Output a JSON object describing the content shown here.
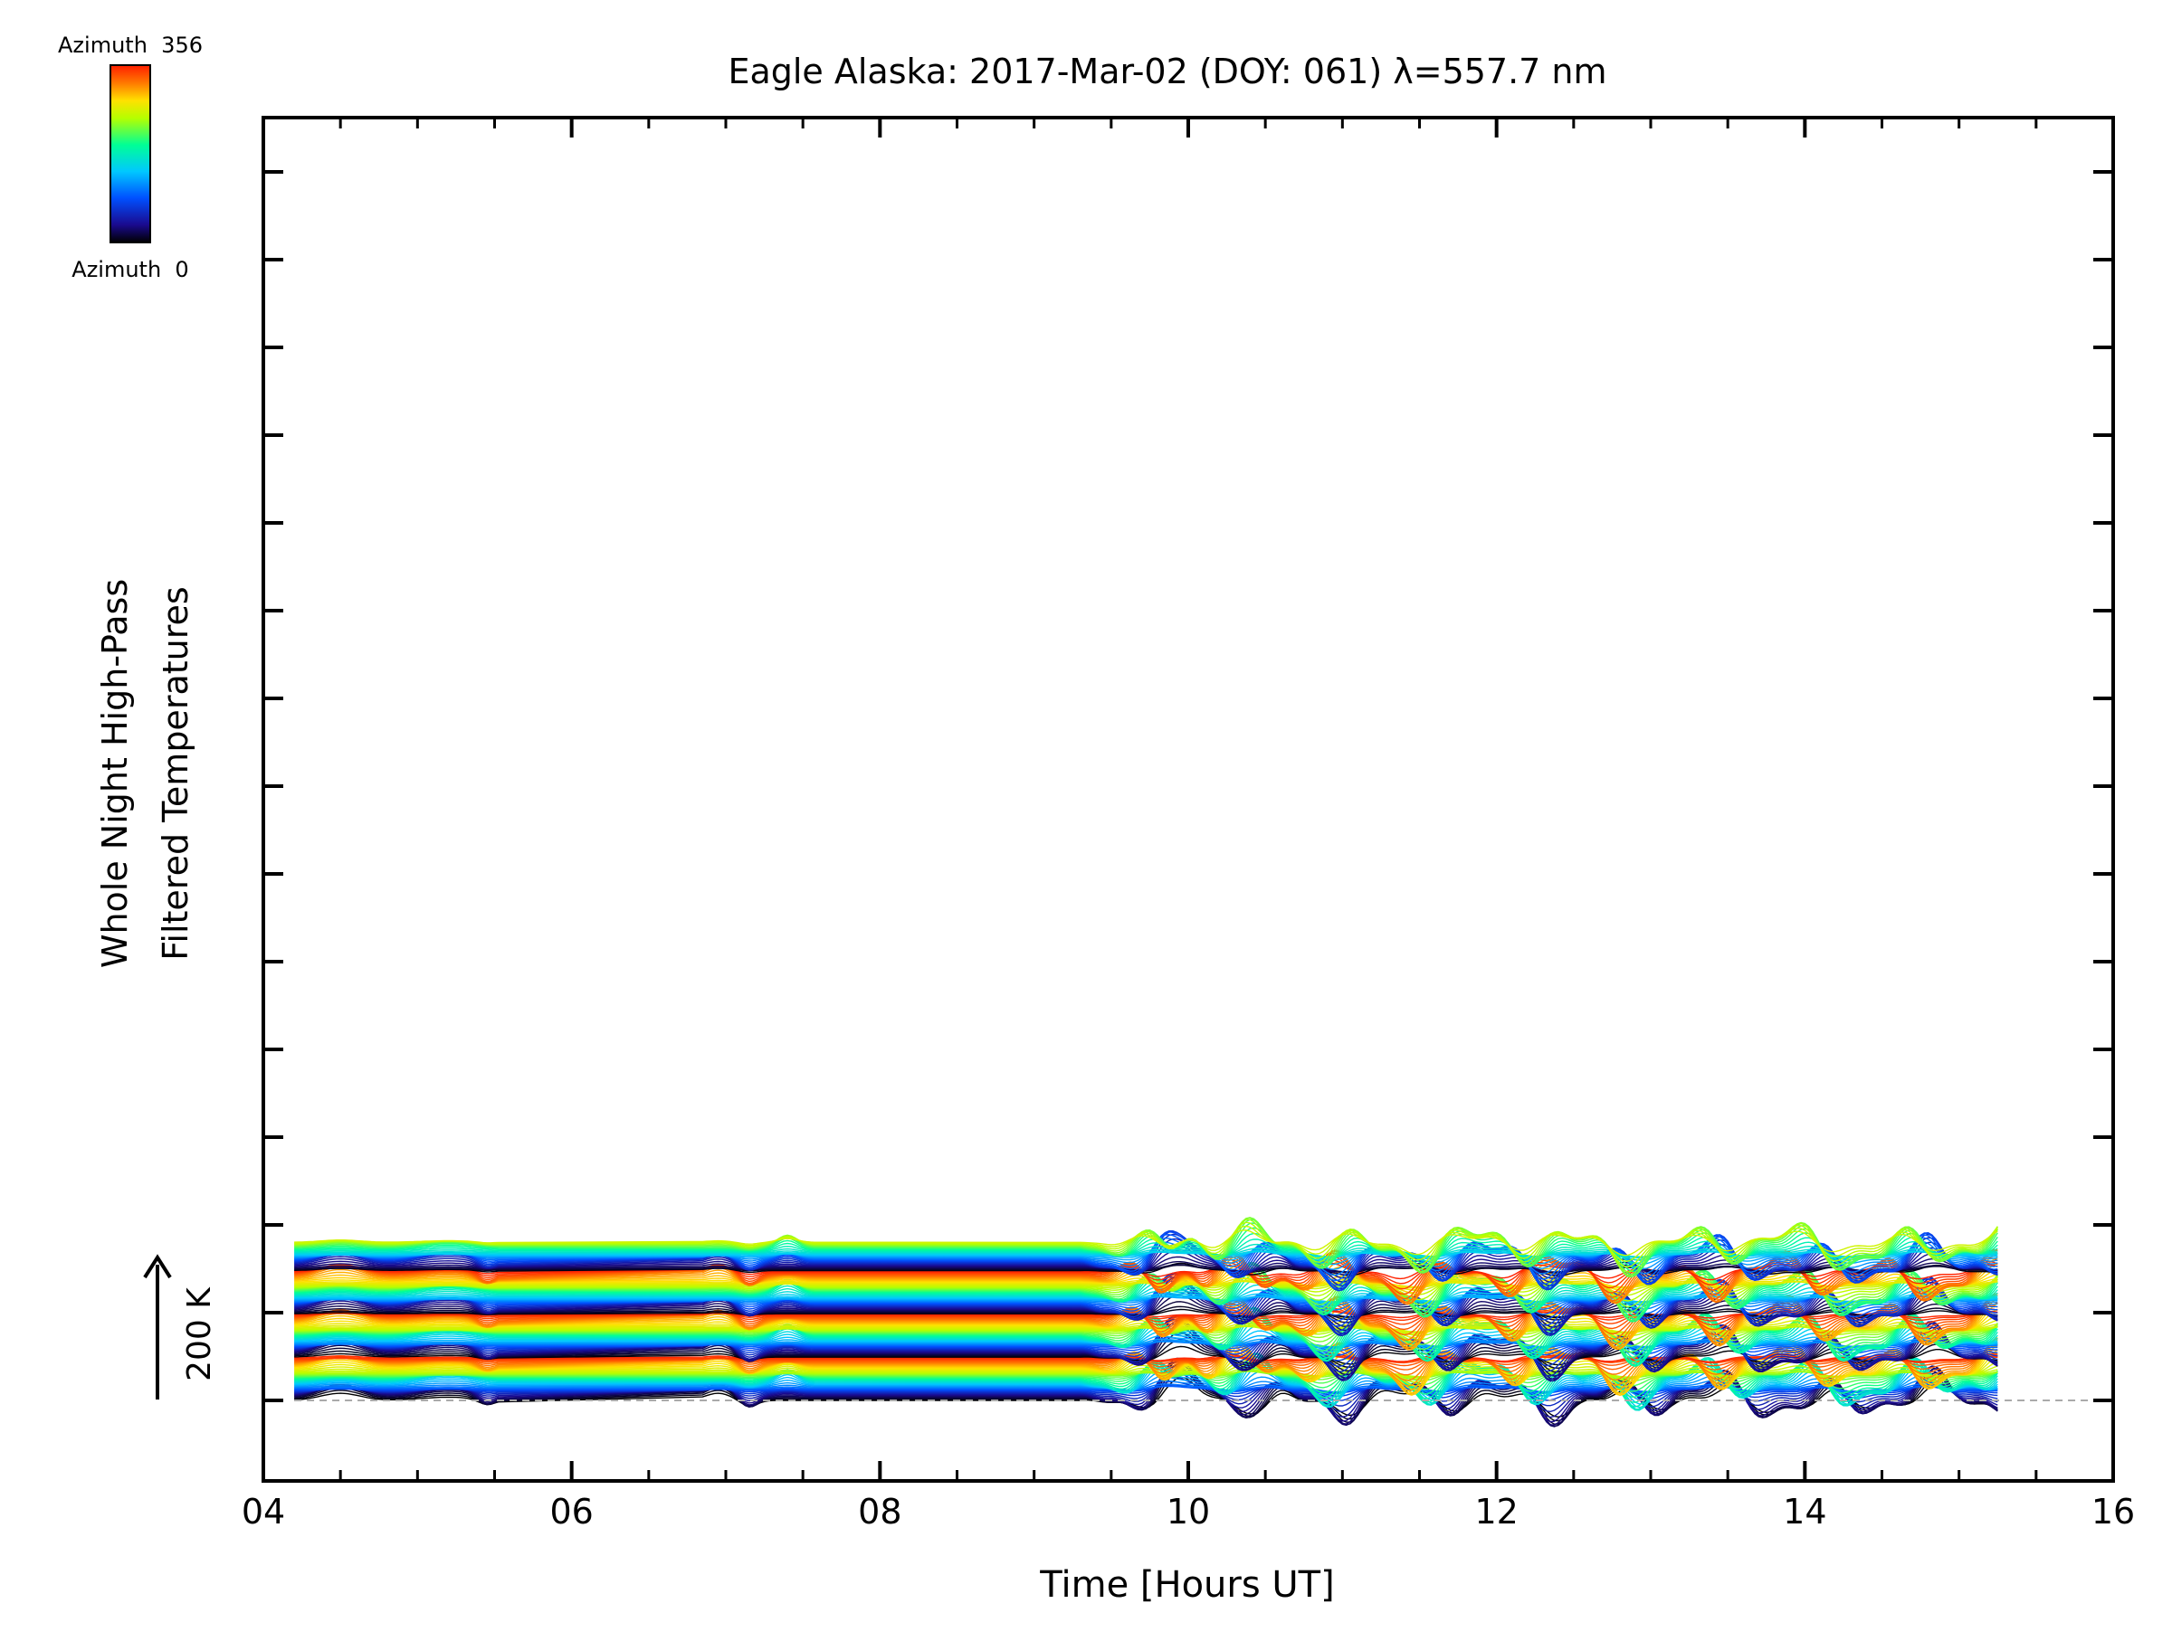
{
  "chart_data": {
    "type": "line",
    "title": "Eagle Alaska: 2017-Mar-02 (DOY: 061) λ=557.7 nm",
    "xlabel": "Time [Hours UT]",
    "ylabel": [
      "Whole Night High-Pass",
      "Filtered Temperatures"
    ],
    "xlim": [
      4,
      16
    ],
    "x_ticks": [
      4,
      6,
      8,
      10,
      12,
      14,
      16
    ],
    "x_tick_labels": [
      "04",
      "06",
      "08",
      "10",
      "12",
      "14",
      "16"
    ],
    "y_ticks_unlabeled": 16,
    "scale_bar_label": "200 K",
    "scale_bar_value_k": 200,
    "colorbar": {
      "top_label": "Azimuth  356",
      "bottom_label": "Azimuth  0",
      "min": 0,
      "max": 356,
      "colormap": "rainbow"
    },
    "baseline_dashed": true,
    "series_count": 180,
    "time_range": [
      4.2,
      15.25
    ],
    "gap_interval": [
      5.55,
      6.85
    ],
    "gap_interval_2": [
      7.6,
      9.25
    ],
    "offset_per_series_k": 18,
    "colormap_stops": [
      "#000000",
      "#1a0a8f",
      "#0050ff",
      "#00c8ff",
      "#00ff96",
      "#b4ff00",
      "#ffe100",
      "#ff7800",
      "#ff1e00"
    ]
  }
}
